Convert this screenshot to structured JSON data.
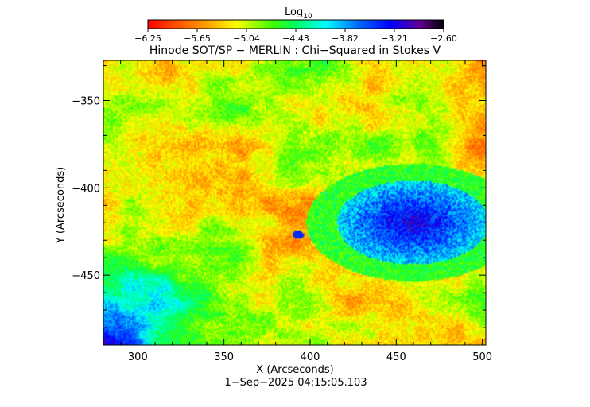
{
  "colorbar": {
    "label": "Log",
    "label_sub": "10",
    "ticks": [
      "−6.25",
      "−5.65",
      "−5.04",
      "−4.43",
      "−3.82",
      "−3.21",
      "−2.60"
    ],
    "range": [
      -6.25,
      -2.6
    ]
  },
  "title": "Hinode SOT/SP − MERLIN : Chi−Squared in Stokes V",
  "footer": "1−Sep−2025 04:15:05.103",
  "chart_data": {
    "type": "heatmap",
    "title": "Hinode SOT/SP − MERLIN : Chi−Squared in Stokes V",
    "xlabel": "X (Arcseconds)",
    "ylabel": "Y (Arcseconds)",
    "xlim": [
      280,
      502
    ],
    "ylim": [
      -490,
      -327
    ],
    "xticks": [
      300,
      350,
      400,
      450,
      500
    ],
    "xtick_labels": [
      "300",
      "350",
      "400",
      "450",
      "500"
    ],
    "yticks": [
      -350,
      -400,
      -450
    ],
    "ytick_labels": [
      "−350",
      "−400",
      "−450"
    ],
    "colorscale": "rainbow (red = low, blue/black = high)",
    "value_range_log10": [
      -6.25,
      -2.6
    ],
    "features": [
      {
        "description": "sunspot region of high chi-squared (blue)",
        "x": 460,
        "y": -420
      },
      {
        "description": "small blue patch",
        "x": 393,
        "y": -427
      },
      {
        "description": "blue region lower-left",
        "x": 315,
        "y": -470
      }
    ]
  }
}
